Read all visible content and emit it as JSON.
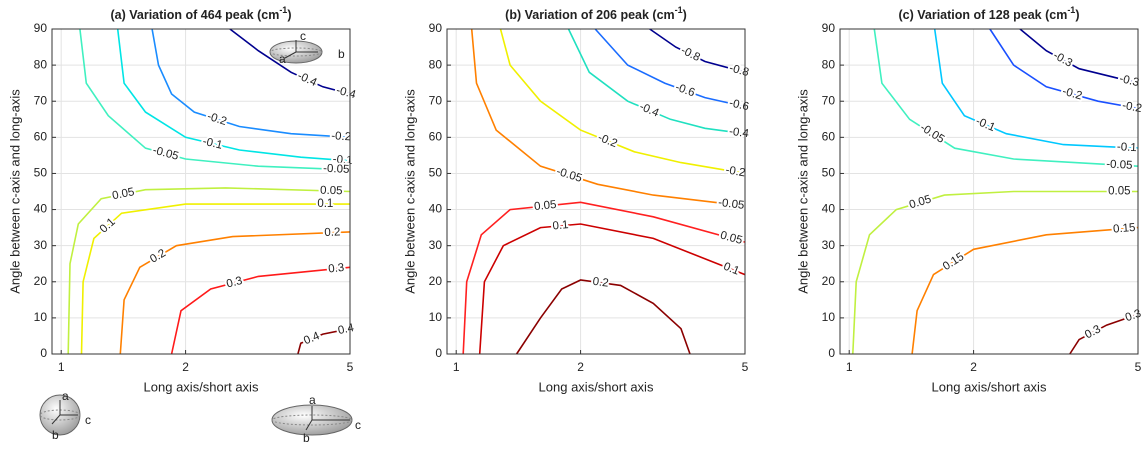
{
  "chart_data": [
    {
      "type": "contour",
      "title": "(a) Variation of 464 peak (cm",
      "title_sup": "-1",
      "title_end": ")",
      "xlabel": "Long axis/short axis",
      "ylabel": "Angle between c-axis and long-axis",
      "xscale": "log",
      "xlim": [
        0.95,
        5
      ],
      "ylim": [
        0,
        90
      ],
      "xticks": [
        1,
        2,
        5
      ],
      "yticks": [
        0,
        10,
        20,
        30,
        40,
        50,
        60,
        70,
        80,
        90
      ],
      "grid": true,
      "contours": [
        {
          "level": -0.4,
          "color": "#00008f",
          "x": [
            2.56,
            3,
            3.6,
            4.3,
            5
          ],
          "y": [
            90,
            84,
            78,
            74,
            72
          ]
        },
        {
          "level": -0.2,
          "color": "#1a8cff",
          "x": [
            1.66,
            1.72,
            1.85,
            2.1,
            2.7,
            3.6,
            5
          ],
          "y": [
            90,
            80,
            72,
            67,
            63,
            61,
            60
          ]
        },
        {
          "level": -0.1,
          "color": "#00e5e5",
          "x": [
            1.37,
            1.42,
            1.6,
            2,
            2.7,
            3.8,
            5
          ],
          "y": [
            90,
            75,
            67,
            60,
            56.5,
            54.5,
            53.5
          ]
        },
        {
          "level": -0.05,
          "color": "#40f0c0",
          "x": [
            1.11,
            1.15,
            1.3,
            1.6,
            2,
            3,
            5
          ],
          "y": [
            90,
            75,
            66,
            57,
            54,
            52,
            51
          ]
        },
        {
          "level": 0.05,
          "color": "#c0f040",
          "x": [
            1.04,
            1.05,
            1.1,
            1.25,
            1.6,
            2.5,
            5
          ],
          "y": [
            0,
            25,
            36,
            43,
            45.5,
            46,
            45
          ]
        },
        {
          "level": 0.1,
          "color": "#f0f000",
          "x": [
            1.12,
            1.13,
            1.2,
            1.4,
            2,
            5
          ],
          "y": [
            0,
            20,
            32,
            39,
            41.5,
            41.5
          ]
        },
        {
          "level": 0.2,
          "color": "#ff8000",
          "x": [
            1.39,
            1.42,
            1.55,
            1.9,
            2.6,
            5
          ],
          "y": [
            0,
            15,
            24,
            30,
            32.5,
            33.8
          ]
        },
        {
          "level": 0.3,
          "color": "#ff1a1a",
          "x": [
            1.85,
            1.95,
            2.3,
            3,
            5
          ],
          "y": [
            0,
            12,
            18,
            21.5,
            24
          ]
        },
        {
          "level": 0.4,
          "color": "#8b0000",
          "x": [
            3.74,
            3.8,
            4.3,
            5
          ],
          "y": [
            0,
            3,
            5.5,
            7
          ]
        }
      ]
    },
    {
      "type": "contour",
      "title": "(b) Variation of 206 peak (cm",
      "title_sup": "-1",
      "title_end": ")",
      "xlabel": "Long axis/short axis",
      "ylabel": "Angle between c-axis and long-axis",
      "xscale": "log",
      "xlim": [
        0.95,
        5
      ],
      "ylim": [
        0,
        90
      ],
      "xticks": [
        1,
        2,
        5
      ],
      "yticks": [
        0,
        10,
        20,
        30,
        40,
        50,
        60,
        70,
        80,
        90
      ],
      "grid": true,
      "contours": [
        {
          "level": -0.8,
          "color": "#00008f",
          "x": [
            2.94,
            3.4,
            4,
            5
          ],
          "y": [
            90,
            85,
            81,
            78
          ]
        },
        {
          "level": -0.6,
          "color": "#1a6cff",
          "x": [
            2.17,
            2.6,
            3.2,
            4,
            5
          ],
          "y": [
            90,
            80,
            75,
            71,
            68.5
          ]
        },
        {
          "level": -0.4,
          "color": "#20e0c0",
          "x": [
            1.87,
            2.1,
            2.6,
            3.3,
            4,
            5
          ],
          "y": [
            90,
            78,
            70,
            65,
            62.5,
            61
          ]
        },
        {
          "level": -0.2,
          "color": "#f0f000",
          "x": [
            1.28,
            1.35,
            1.6,
            2,
            2.7,
            3.5,
            5
          ],
          "y": [
            90,
            80,
            70,
            62,
            56,
            53,
            50
          ]
        },
        {
          "level": -0.05,
          "color": "#ff8000",
          "x": [
            1.09,
            1.12,
            1.25,
            1.6,
            2.2,
            3,
            5
          ],
          "y": [
            90,
            75,
            62,
            52,
            47,
            44,
            41
          ]
        },
        {
          "level": 0.05,
          "color": "#ff2020",
          "x": [
            1.04,
            1.06,
            1.15,
            1.35,
            2,
            3,
            5
          ],
          "y": [
            0,
            20,
            33,
            40,
            42,
            38,
            31
          ]
        },
        {
          "level": 0.1,
          "color": "#cc0000",
          "x": [
            1.14,
            1.17,
            1.3,
            1.6,
            2,
            3,
            5
          ],
          "y": [
            0,
            20,
            30,
            35,
            36,
            32,
            22
          ]
        },
        {
          "level": 0.2,
          "color": "#8b0000",
          "x": [
            1.4,
            1.6,
            1.8,
            2,
            2.5,
            3,
            3.5,
            3.68
          ],
          "y": [
            0,
            10,
            18,
            20.5,
            19,
            14,
            7,
            0
          ]
        }
      ]
    },
    {
      "type": "contour",
      "title": "(c) Variation of 128 peak (cm",
      "title_sup": "-1",
      "title_end": ")",
      "xlabel": "Long axis/short axis",
      "ylabel": "Angle between c-axis and long-axis",
      "xscale": "log",
      "xlim": [
        0.95,
        5
      ],
      "ylim": [
        0,
        90
      ],
      "xticks": [
        1,
        2,
        5
      ],
      "yticks": [
        0,
        10,
        20,
        30,
        40,
        50,
        60,
        70,
        80,
        90
      ],
      "grid": true,
      "contours": [
        {
          "level": -0.3,
          "color": "#00008f",
          "x": [
            2.59,
            3,
            3.6,
            5
          ],
          "y": [
            90,
            84,
            79,
            75
          ]
        },
        {
          "level": -0.2,
          "color": "#1a50ff",
          "x": [
            2.19,
            2.5,
            3,
            4,
            5
          ],
          "y": [
            90,
            80,
            74,
            70,
            68
          ]
        },
        {
          "level": -0.1,
          "color": "#00c8ff",
          "x": [
            1.61,
            1.68,
            1.9,
            2.4,
            3.3,
            5
          ],
          "y": [
            90,
            75,
            66,
            61,
            58,
            57
          ]
        },
        {
          "level": -0.05,
          "color": "#40f0c0",
          "x": [
            1.15,
            1.2,
            1.4,
            1.8,
            2.5,
            5
          ],
          "y": [
            90,
            75,
            65,
            57,
            54,
            52
          ]
        },
        {
          "level": 0.05,
          "color": "#c0f040",
          "x": [
            1.02,
            1.04,
            1.12,
            1.3,
            1.7,
            2.5,
            5
          ],
          "y": [
            0,
            20,
            33,
            40,
            44,
            45,
            45
          ]
        },
        {
          "level": 0.15,
          "color": "#ff8000",
          "x": [
            1.42,
            1.46,
            1.6,
            2,
            3,
            5
          ],
          "y": [
            0,
            12,
            22,
            29,
            33,
            35
          ]
        },
        {
          "level": 0.3,
          "color": "#8b0000",
          "x": [
            3.42,
            3.6,
            4.2,
            5
          ],
          "y": [
            0,
            4,
            8,
            11
          ]
        }
      ]
    }
  ],
  "icons": [
    [
      "c",
      "a",
      "b"
    ],
    [
      "a",
      "b",
      "c"
    ],
    [
      "a",
      "b",
      "c"
    ]
  ]
}
